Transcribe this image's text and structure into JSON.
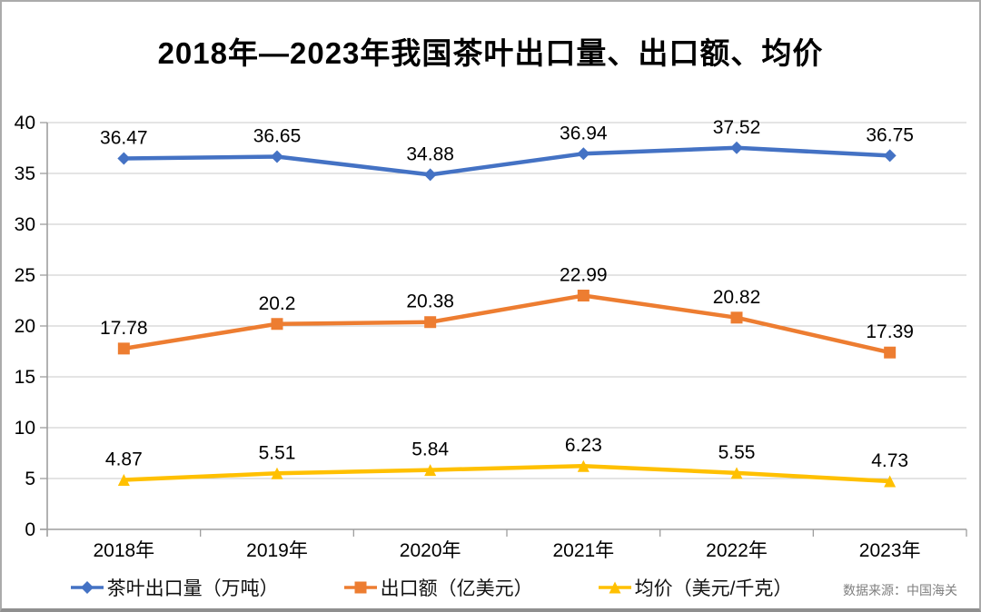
{
  "title": "2018年—2023年我国茶叶出口量、出口额、均价",
  "source_note": "数据来源：中国海关",
  "chart_data": {
    "type": "line",
    "categories": [
      "2018年",
      "2019年",
      "2020年",
      "2021年",
      "2022年",
      "2023年"
    ],
    "series": [
      {
        "name": "茶叶出口量（万吨）",
        "values": [
          36.47,
          36.65,
          34.88,
          36.94,
          37.52,
          36.75
        ],
        "labels": [
          "36.47",
          "36.65",
          "34.88",
          "36.94",
          "37.52",
          "36.75"
        ],
        "color": "#4472C4",
        "marker": "diamond"
      },
      {
        "name": "出口额（亿美元）",
        "values": [
          17.78,
          20.2,
          20.38,
          22.99,
          20.82,
          17.39
        ],
        "labels": [
          "17.78",
          "20.2",
          "20.38",
          "22.99",
          "20.82",
          "17.39"
        ],
        "color": "#ED7D31",
        "marker": "square"
      },
      {
        "name": "均价（美元/千克）",
        "values": [
          4.87,
          5.51,
          5.84,
          6.23,
          5.55,
          4.73
        ],
        "labels": [
          "4.87",
          "5.51",
          "5.84",
          "6.23",
          "5.55",
          "4.73"
        ],
        "color": "#FFC000",
        "marker": "triangle"
      }
    ],
    "ylim": [
      0,
      40
    ],
    "ytick_step": 5,
    "ytick_labels": [
      "0",
      "5",
      "10",
      "15",
      "20",
      "25",
      "30",
      "35",
      "40"
    ],
    "grid": true,
    "data_labels": true,
    "legend_position": "bottom"
  },
  "colors": {
    "grid": "#c9c9c9",
    "axis": "#9e9e9e",
    "text": "#000000",
    "source": "#7f7f7f"
  }
}
